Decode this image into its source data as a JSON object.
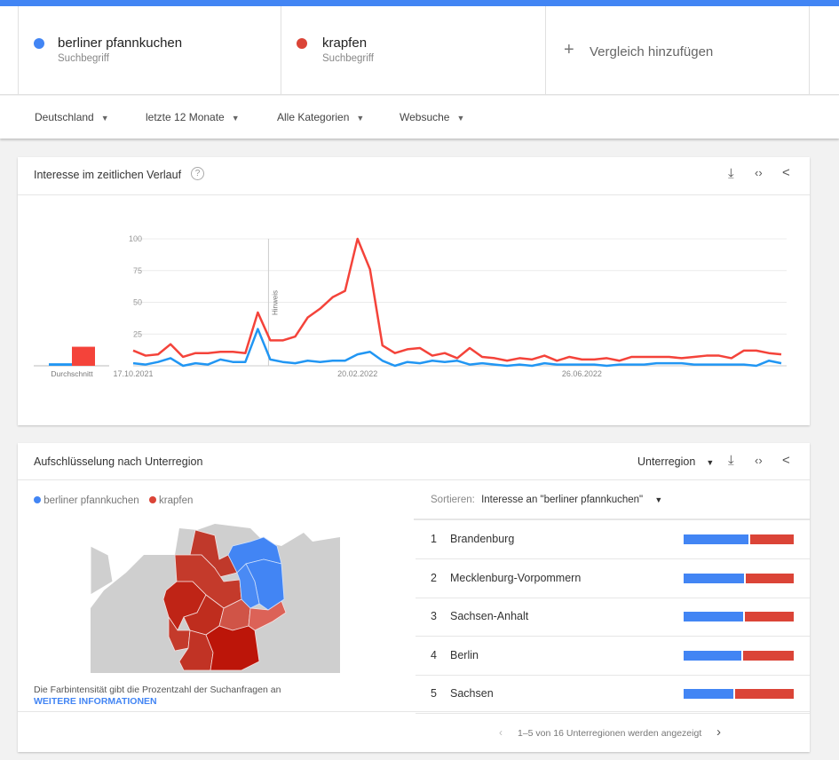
{
  "colors": {
    "accent": "#4285f4",
    "blue_series": "#4285f4",
    "red_series": "#db4437",
    "red_line": "#f4433a",
    "blue_line": "#2196f3"
  },
  "terms": [
    {
      "name": "berliner pfannkuchen",
      "sub": "Suchbegriff",
      "color": "#4285f4"
    },
    {
      "name": "krapfen",
      "sub": "Suchbegriff",
      "color": "#db4437"
    }
  ],
  "add_compare": {
    "icon": "plus-icon",
    "label": "Vergleich hinzufügen"
  },
  "filters": [
    {
      "label": "Deutschland"
    },
    {
      "label": "letzte 12 Monate"
    },
    {
      "label": "Alle Kategorien"
    },
    {
      "label": "Websuche"
    }
  ],
  "interest_card": {
    "title": "Interesse im zeitlichen Verlauf",
    "help_icon": "help-icon",
    "icons": [
      "download-icon",
      "embed-icon",
      "share-icon"
    ]
  },
  "chart_data": {
    "type": "line",
    "ylim": [
      0,
      100
    ],
    "yticks": [
      "25",
      "50",
      "75",
      "100"
    ],
    "xtick_labels": [
      {
        "index": 0,
        "label": "17.10.2021"
      },
      {
        "index": 18,
        "label": "20.02.2022"
      },
      {
        "index": 36,
        "label": "26.06.2022"
      }
    ],
    "annotation": {
      "index": 11,
      "label": "Hinweis"
    },
    "average_label": "Durchschnitt",
    "averages": {
      "berliner pfannkuchen": 2,
      "krapfen": 15
    },
    "series": [
      {
        "name": "berliner pfannkuchen",
        "color": "#2196f3",
        "values": [
          2,
          1,
          3,
          6,
          0,
          2,
          1,
          5,
          3,
          3,
          29,
          5,
          3,
          2,
          4,
          3,
          4,
          4,
          9,
          11,
          4,
          0,
          3,
          2,
          4,
          3,
          4,
          1,
          2,
          1,
          0,
          1,
          0,
          2,
          1,
          1,
          1,
          1,
          0,
          1,
          1,
          1,
          2,
          2,
          2,
          1,
          1,
          1,
          1,
          1,
          0,
          4,
          2
        ]
      },
      {
        "name": "krapfen",
        "color": "#f4433a",
        "values": [
          12,
          8,
          9,
          17,
          7,
          10,
          10,
          11,
          11,
          10,
          42,
          20,
          20,
          23,
          38,
          45,
          54,
          59,
          100,
          76,
          16,
          10,
          13,
          14,
          8,
          10,
          6,
          14,
          7,
          6,
          4,
          6,
          5,
          8,
          4,
          7,
          5,
          5,
          6,
          4,
          7,
          7,
          7,
          7,
          6,
          7,
          8,
          8,
          6,
          12,
          12,
          10,
          9
        ]
      }
    ],
    "grid": true
  },
  "region_card": {
    "title": "Aufschlüsselung nach Unterregion",
    "resolution": "Unterregion",
    "legend": [
      "berliner pfannkuchen",
      "krapfen"
    ],
    "map_note": "Die Farbintensität gibt die Prozentzahl der Suchanfragen an",
    "more_info": "WEITERE INFORMATIONEN",
    "sort_label": "Sortieren:",
    "sort_value": "Interesse an \"berliner pfannkuchen\"",
    "rows": [
      {
        "rank": "1",
        "name": "Brandenburg",
        "blue_pct": 60
      },
      {
        "rank": "2",
        "name": "Mecklenburg-Vorpommern",
        "blue_pct": 56
      },
      {
        "rank": "3",
        "name": "Sachsen-Anhalt",
        "blue_pct": 55
      },
      {
        "rank": "4",
        "name": "Berlin",
        "blue_pct": 53
      },
      {
        "rank": "5",
        "name": "Sachsen",
        "blue_pct": 46
      }
    ],
    "pagination": "1–5 von 16 Unterregionen werden angezeigt"
  }
}
